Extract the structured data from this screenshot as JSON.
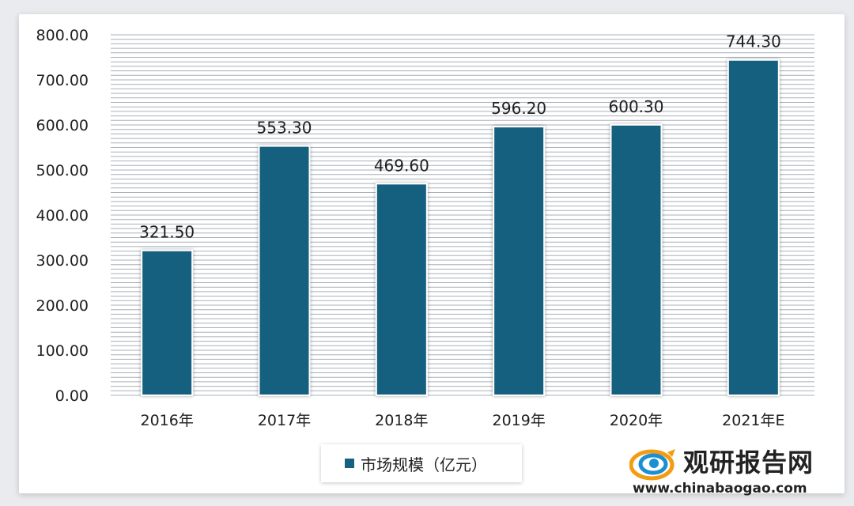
{
  "chart_data": {
    "type": "bar",
    "categories": [
      "2016年",
      "2017年",
      "2018年",
      "2019年",
      "2020年",
      "2021年E"
    ],
    "series": [
      {
        "name": "市场规模（亿元）",
        "values": [
          321.5,
          553.3,
          469.6,
          596.2,
          600.3,
          744.3
        ]
      }
    ],
    "data_labels": [
      "321.50",
      "553.30",
      "469.60",
      "596.20",
      "600.30",
      "744.30"
    ],
    "y_ticks": [
      "0.00",
      "100.00",
      "200.00",
      "300.00",
      "400.00",
      "500.00",
      "600.00",
      "700.00",
      "800.00"
    ],
    "ylim": [
      0,
      800
    ],
    "grid": true,
    "legend_position": "bottom",
    "bar_color": "#17607f"
  },
  "legend": {
    "label": "市场规模（亿元）"
  },
  "watermark": {
    "name": "观研报告网",
    "url": "www.chinabaogao.com"
  }
}
